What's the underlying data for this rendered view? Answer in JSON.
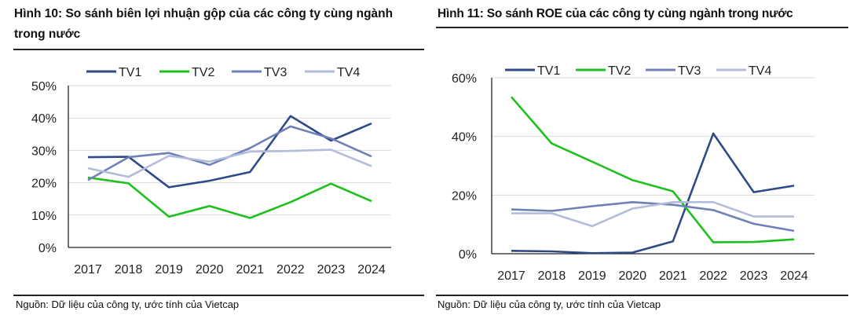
{
  "figures": [
    {
      "title": "Hình 10: So sánh biên lợi nhuận gộp của các công ty cùng ngành trong nước",
      "source": "Nguồn: Dữ liệu của công ty, ước tính của Vietcap"
    },
    {
      "title": "Hình 11: So sánh ROE của các công ty cùng ngành trong nước",
      "source": "Nguồn: Dữ liệu của công ty, ước tính của Vietcap"
    }
  ],
  "chart_data": [
    {
      "type": "line",
      "title": "Hình 10: So sánh biên lợi nhuận gộp của các công ty cùng ngành trong nước",
      "categories": [
        "2017",
        "2018",
        "2019",
        "2020",
        "2021",
        "2022",
        "2023",
        "2024"
      ],
      "ylim": [
        0,
        50
      ],
      "yticks": [
        0,
        10,
        20,
        30,
        40,
        50
      ],
      "ytick_labels": [
        "0%",
        "10%",
        "20%",
        "30%",
        "40%",
        "50%"
      ],
      "grid": true,
      "legend": "top",
      "series": [
        {
          "name": "TV1",
          "color": "#2e4a87",
          "values": [
            27.9,
            28.0,
            18.6,
            20.6,
            23.3,
            40.6,
            33.0,
            38.3
          ]
        },
        {
          "name": "TV2",
          "color": "#1ec01e",
          "values": [
            21.6,
            19.8,
            9.5,
            12.8,
            9.1,
            14.0,
            19.7,
            14.3
          ]
        },
        {
          "name": "TV3",
          "color": "#6f80b8",
          "values": [
            20.8,
            27.9,
            29.2,
            25.5,
            30.7,
            37.4,
            33.7,
            28.1
          ]
        },
        {
          "name": "TV4",
          "color": "#b3bcda",
          "values": [
            24.5,
            21.8,
            28.3,
            26.5,
            29.6,
            29.8,
            30.2,
            25.1
          ]
        }
      ]
    },
    {
      "type": "line",
      "title": "Hình 11: So sánh ROE của các công ty cùng ngành trong nước",
      "categories": [
        "2017",
        "2018",
        "2019",
        "2020",
        "2021",
        "2022",
        "2023",
        "2024"
      ],
      "ylim": [
        0,
        60
      ],
      "yticks": [
        0,
        20,
        40,
        60
      ],
      "ytick_labels": [
        "0%",
        "20%",
        "40%",
        "60%"
      ],
      "grid": true,
      "legend": "top",
      "series": [
        {
          "name": "TV1",
          "color": "#2e4a87",
          "values": [
            1.0,
            0.8,
            0.2,
            0.4,
            4.2,
            41.0,
            21.0,
            23.2
          ]
        },
        {
          "name": "TV2",
          "color": "#1ec01e",
          "values": [
            53.5,
            37.6,
            31.4,
            25.1,
            21.3,
            3.9,
            4.0,
            4.9
          ]
        },
        {
          "name": "TV3",
          "color": "#6f80b8",
          "values": [
            15.1,
            14.6,
            16.2,
            17.6,
            16.7,
            14.9,
            10.2,
            7.8
          ]
        },
        {
          "name": "TV4",
          "color": "#b3bcda",
          "values": [
            13.8,
            13.8,
            9.4,
            15.4,
            17.6,
            17.6,
            12.7,
            12.7
          ]
        }
      ]
    }
  ]
}
